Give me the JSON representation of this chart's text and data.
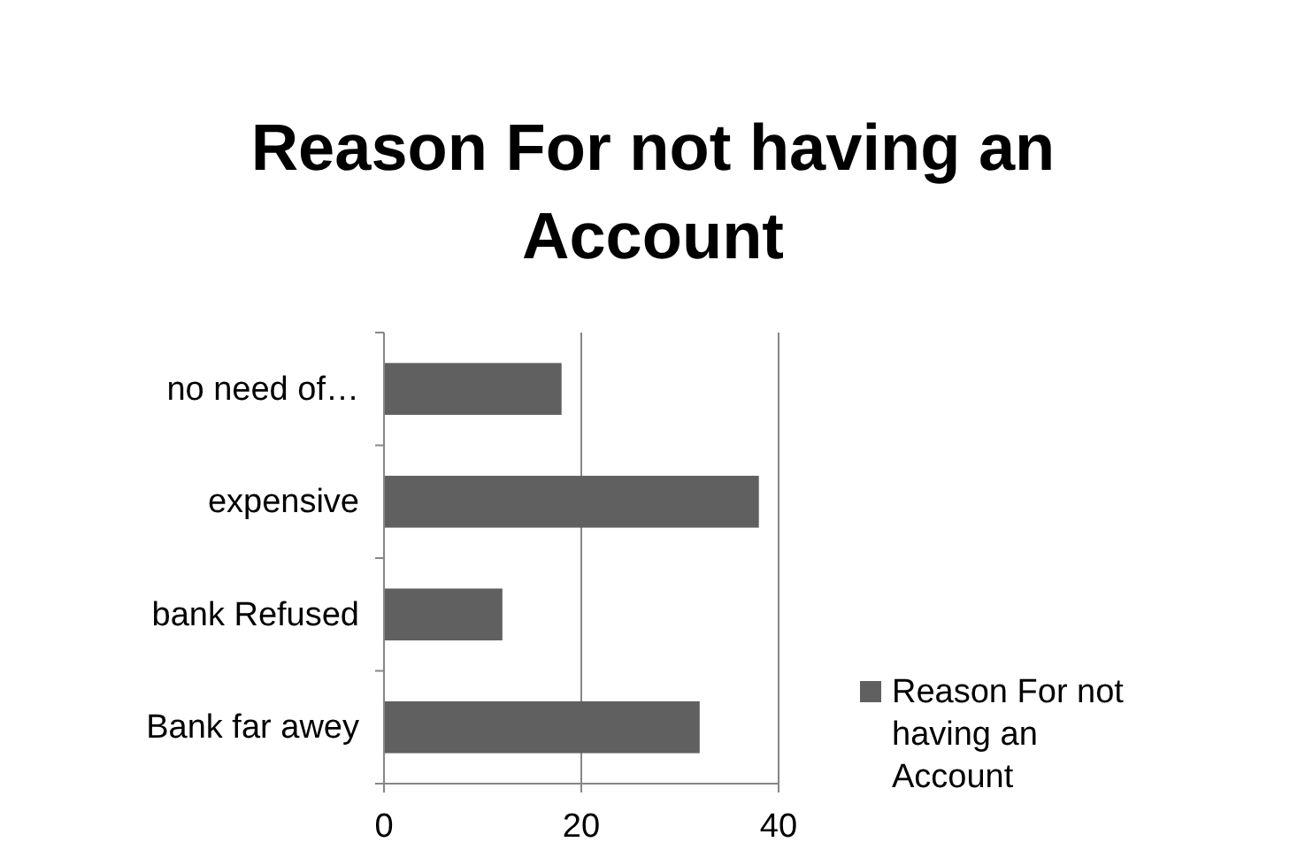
{
  "chart_data": {
    "type": "bar",
    "orientation": "horizontal",
    "title": "Reason For not having an Account",
    "categories": [
      "no need of…",
      "expensive",
      "bank Refused",
      "Bank far awey"
    ],
    "series": [
      {
        "name": "Reason For not having an Account",
        "color": "#606060",
        "values": [
          18,
          38,
          12,
          32
        ]
      }
    ],
    "xlim": [
      0,
      40
    ],
    "xticks": [
      0,
      20,
      40
    ],
    "grid": "x",
    "legend": "right"
  }
}
